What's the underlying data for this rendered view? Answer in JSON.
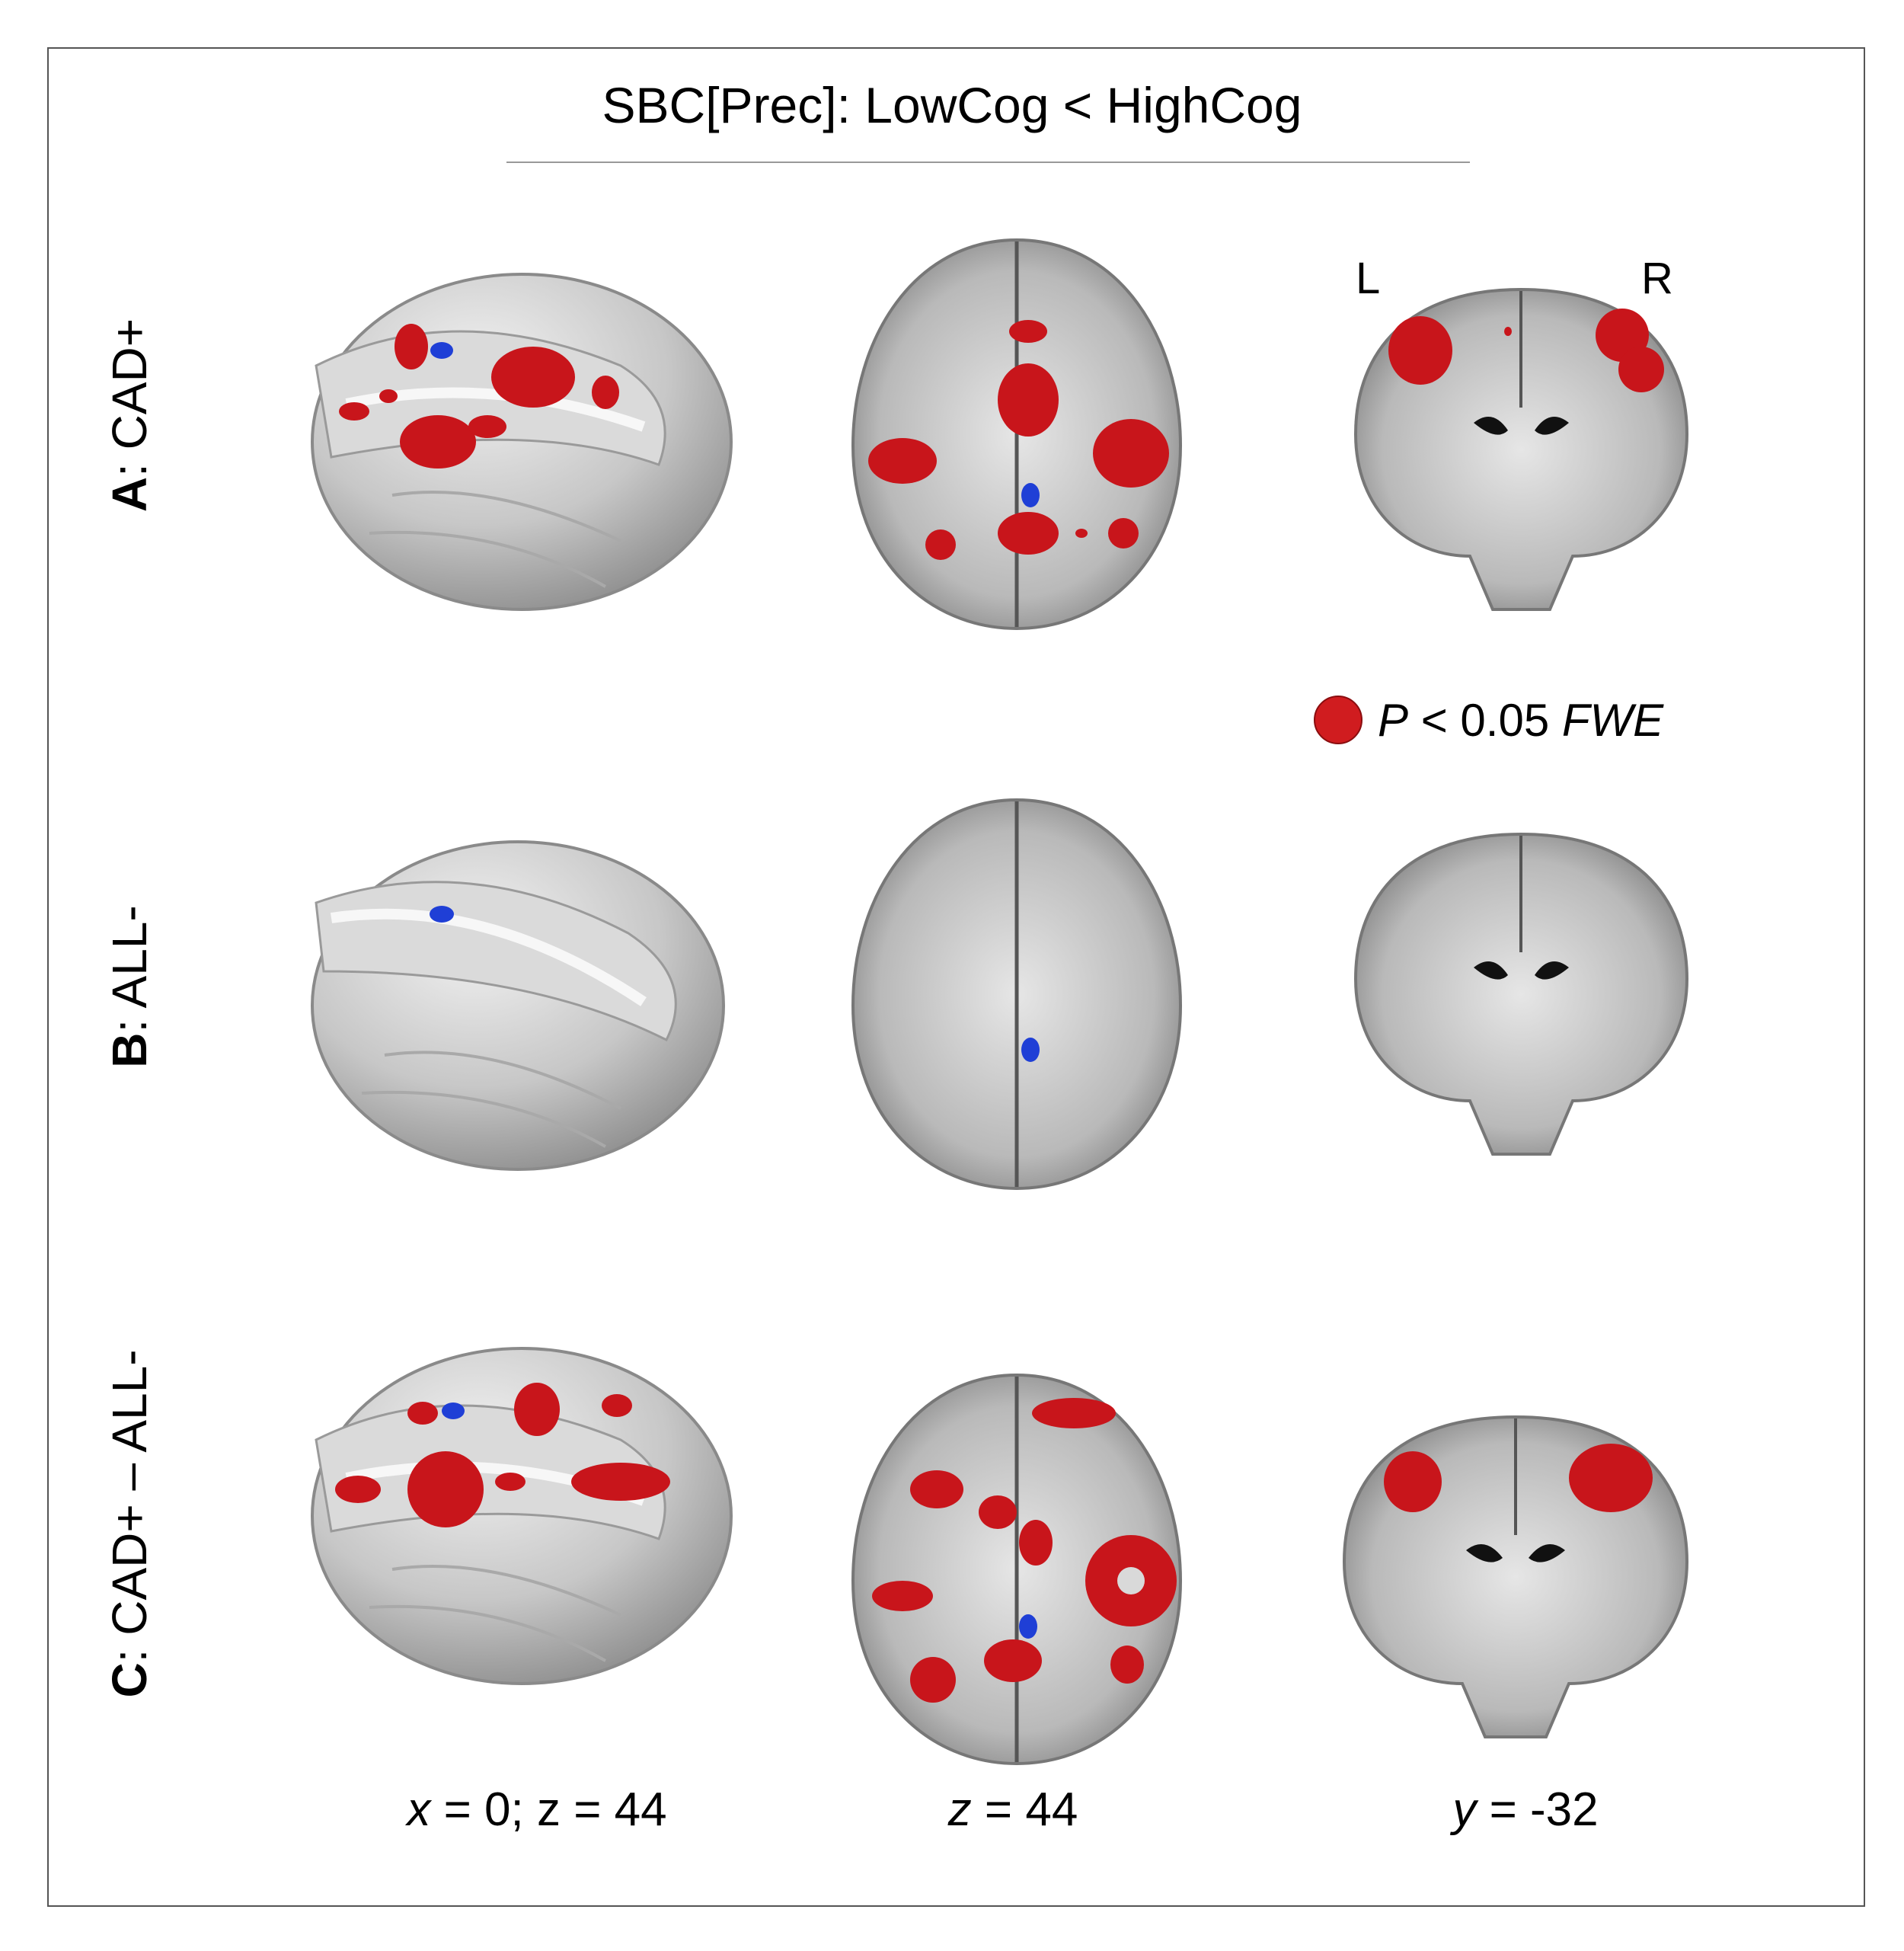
{
  "figure": {
    "title": "SBC[Prec]: LowCog < HighCog",
    "rows": [
      {
        "letter": "A",
        "label": ": CAD+"
      },
      {
        "letter": "B",
        "label": ": ALL-"
      },
      {
        "letter": "C",
        "label": ": CAD+ – ALL-"
      }
    ],
    "orientation": {
      "left": "L",
      "right": "R"
    },
    "legend": {
      "p_symbol": "P",
      "threshold": " < 0.05 ",
      "correction": "FWE",
      "color": "#d01c1f"
    },
    "coordinates": [
      {
        "axis": "x",
        "text": " = 0; z = 44"
      },
      {
        "axis": "z",
        "text": " = 44"
      },
      {
        "axis": "y",
        "text": " = -32"
      }
    ],
    "colors": {
      "activation": "#d01c1f",
      "deactivation": "#1f3fd6",
      "brain": "#c8c8c8"
    }
  }
}
